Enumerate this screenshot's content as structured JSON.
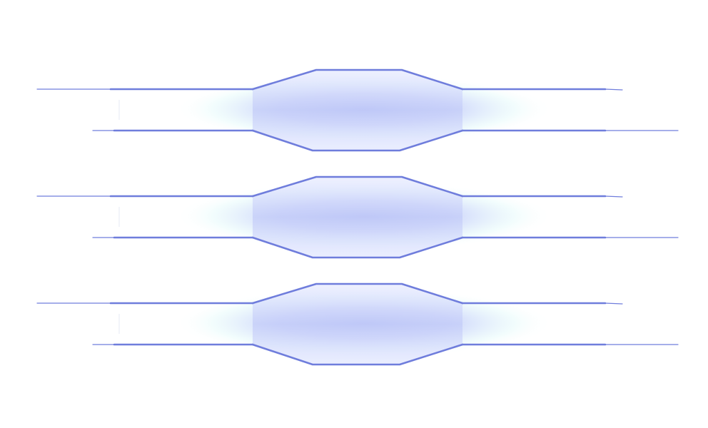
{
  "diagram": {
    "type": "stacked-taper-waveguides",
    "element_count": 3,
    "colors": {
      "background": "#ffffff",
      "stroke": "#6f7ddc",
      "glow_core": "#aeb8f4",
      "glow_mid": "#c9d3fb",
      "glow_edge": "#e7fbfb"
    }
  }
}
